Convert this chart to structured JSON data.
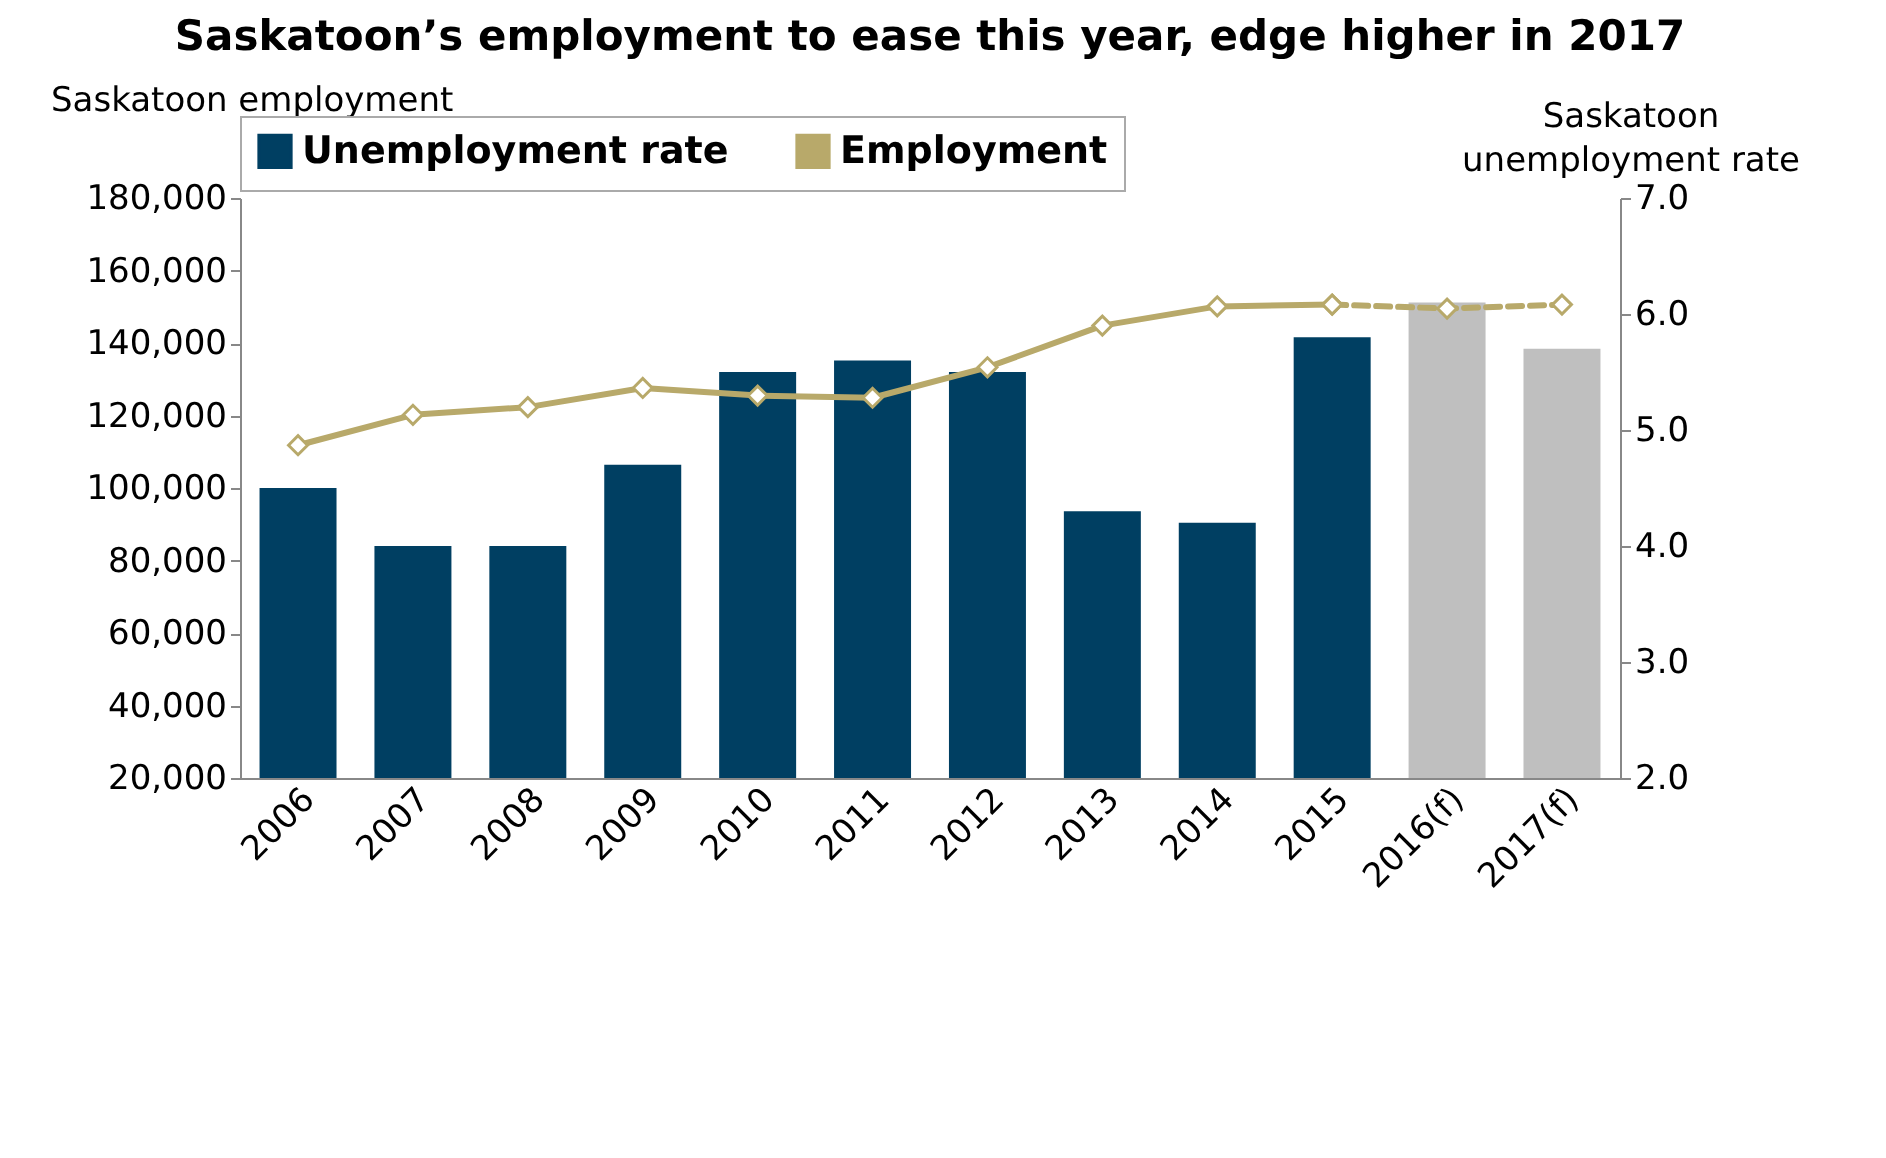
{
  "chart_data": {
    "type": "bar",
    "title": "Saskatoon’s employment to ease this year, edge higher in 2017",
    "ylabel": "Saskatoon employment",
    "y2label": "Saskatoon unemployment rate",
    "categories": [
      "2006",
      "2007",
      "2008",
      "2009",
      "2010",
      "2011",
      "2012",
      "2013",
      "2014",
      "2015",
      "2016(f)",
      "2017(f)"
    ],
    "series": [
      {
        "name": "Unemployment rate",
        "axis": "y2",
        "color": "#003f62",
        "colors": [
          "#003f62",
          "#003f62",
          "#003f62",
          "#003f62",
          "#003f62",
          "#003f62",
          "#003f62",
          "#003f62",
          "#003f62",
          "#003f62",
          "#bfbfbf",
          "#bfbfbf"
        ],
        "values": [
          4.5,
          4.0,
          4.0,
          4.7,
          5.5,
          5.6,
          5.5,
          4.3,
          4.2,
          5.8,
          6.1,
          5.7
        ]
      },
      {
        "name": "Employment",
        "type": "line",
        "color": "#b8a96a",
        "marker": "diamond",
        "line_style": "solid",
        "values": [
          111800,
          120200,
          122300,
          127600,
          125500,
          124900,
          133300,
          144800,
          150100,
          150600,
          null,
          null
        ]
      },
      {
        "type": "line",
        "color": "#b8a96a",
        "marker": "diamond",
        "line_style": "dashed",
        "values": [
          null,
          null,
          null,
          null,
          null,
          null,
          null,
          null,
          null,
          150600,
          149500,
          150600
        ]
      }
    ],
    "ylim": [
      20000,
      180000
    ],
    "yticks": [
      {
        "value": 20000,
        "label": "20,000"
      },
      {
        "value": 40000,
        "label": "40,000"
      },
      {
        "value": 60000,
        "label": "60,000"
      },
      {
        "value": 80000,
        "label": "80,000"
      },
      {
        "value": 100000,
        "label": "100,000"
      },
      {
        "value": 120000,
        "label": "120,000"
      },
      {
        "value": 140000,
        "label": "140,000"
      },
      {
        "value": 160000,
        "label": "160,000"
      },
      {
        "value": 180000,
        "label": "180,000"
      }
    ],
    "y2lim": [
      2,
      7
    ],
    "y2ticks": [
      {
        "value": 2,
        "label": "2.0"
      },
      {
        "value": 3,
        "label": "3.0"
      },
      {
        "value": 4,
        "label": "4.0"
      },
      {
        "value": 5,
        "label": "5.0"
      },
      {
        "value": 6,
        "label": "6.0"
      },
      {
        "value": 7,
        "label": "7.0"
      }
    ],
    "grid": false,
    "legend": "top"
  }
}
